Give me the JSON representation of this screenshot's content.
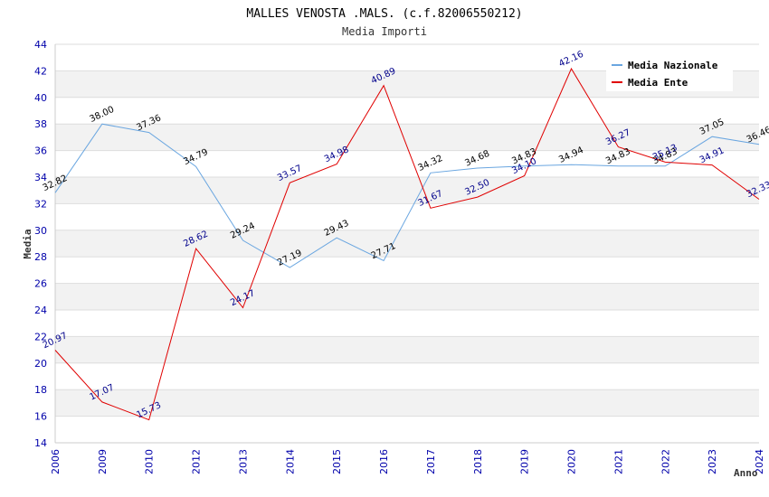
{
  "chart_data": {
    "type": "line",
    "title": "MALLES VENOSTA .MALS. (c.f.82006550212)",
    "subtitle": "Media Importi",
    "xlabel": "Anno",
    "ylabel": "Media",
    "ylim": [
      14,
      44
    ],
    "yticks": [
      "14",
      "16",
      "18",
      "20",
      "22",
      "24",
      "26",
      "28",
      "30",
      "32",
      "34",
      "36",
      "38",
      "40",
      "42",
      "44"
    ],
    "categories": [
      "2006",
      "2009",
      "2010",
      "2012",
      "2013",
      "2014",
      "2015",
      "2016",
      "2017",
      "2018",
      "2019",
      "2020",
      "2021",
      "2022",
      "2023",
      "2024"
    ],
    "series": [
      {
        "name": "Media Nazionale",
        "color": "#6aa6e0",
        "label_color": "#000000",
        "values": [
          32.82,
          38.0,
          37.36,
          34.79,
          29.24,
          27.19,
          29.43,
          27.71,
          34.32,
          34.68,
          34.83,
          34.94,
          34.83,
          34.83,
          37.05,
          36.46
        ],
        "labels": [
          "32.82",
          "38.00",
          "37.36",
          "34.79",
          "29.24",
          "27.19",
          "29.43",
          "27.71",
          "34.32",
          "34.68",
          "34.83",
          "34.94",
          "34.83",
          "34.83",
          "37.05",
          "36.46"
        ]
      },
      {
        "name": "Media Ente",
        "color": "#e00000",
        "label_color": "#00008b",
        "values": [
          20.97,
          17.07,
          15.73,
          28.62,
          24.17,
          33.57,
          34.98,
          40.89,
          31.67,
          32.5,
          34.1,
          42.16,
          36.27,
          35.13,
          34.91,
          32.33
        ],
        "labels": [
          "20.97",
          "17.07",
          "15.73",
          "28.62",
          "24.17",
          "33.57",
          "34.98",
          "40.89",
          "31.67",
          "32.50",
          "34.10",
          "42.16",
          "36.27",
          "35.13",
          "34.91",
          "32.33"
        ]
      }
    ],
    "legend": {
      "position": "top-right"
    },
    "grid": true
  }
}
